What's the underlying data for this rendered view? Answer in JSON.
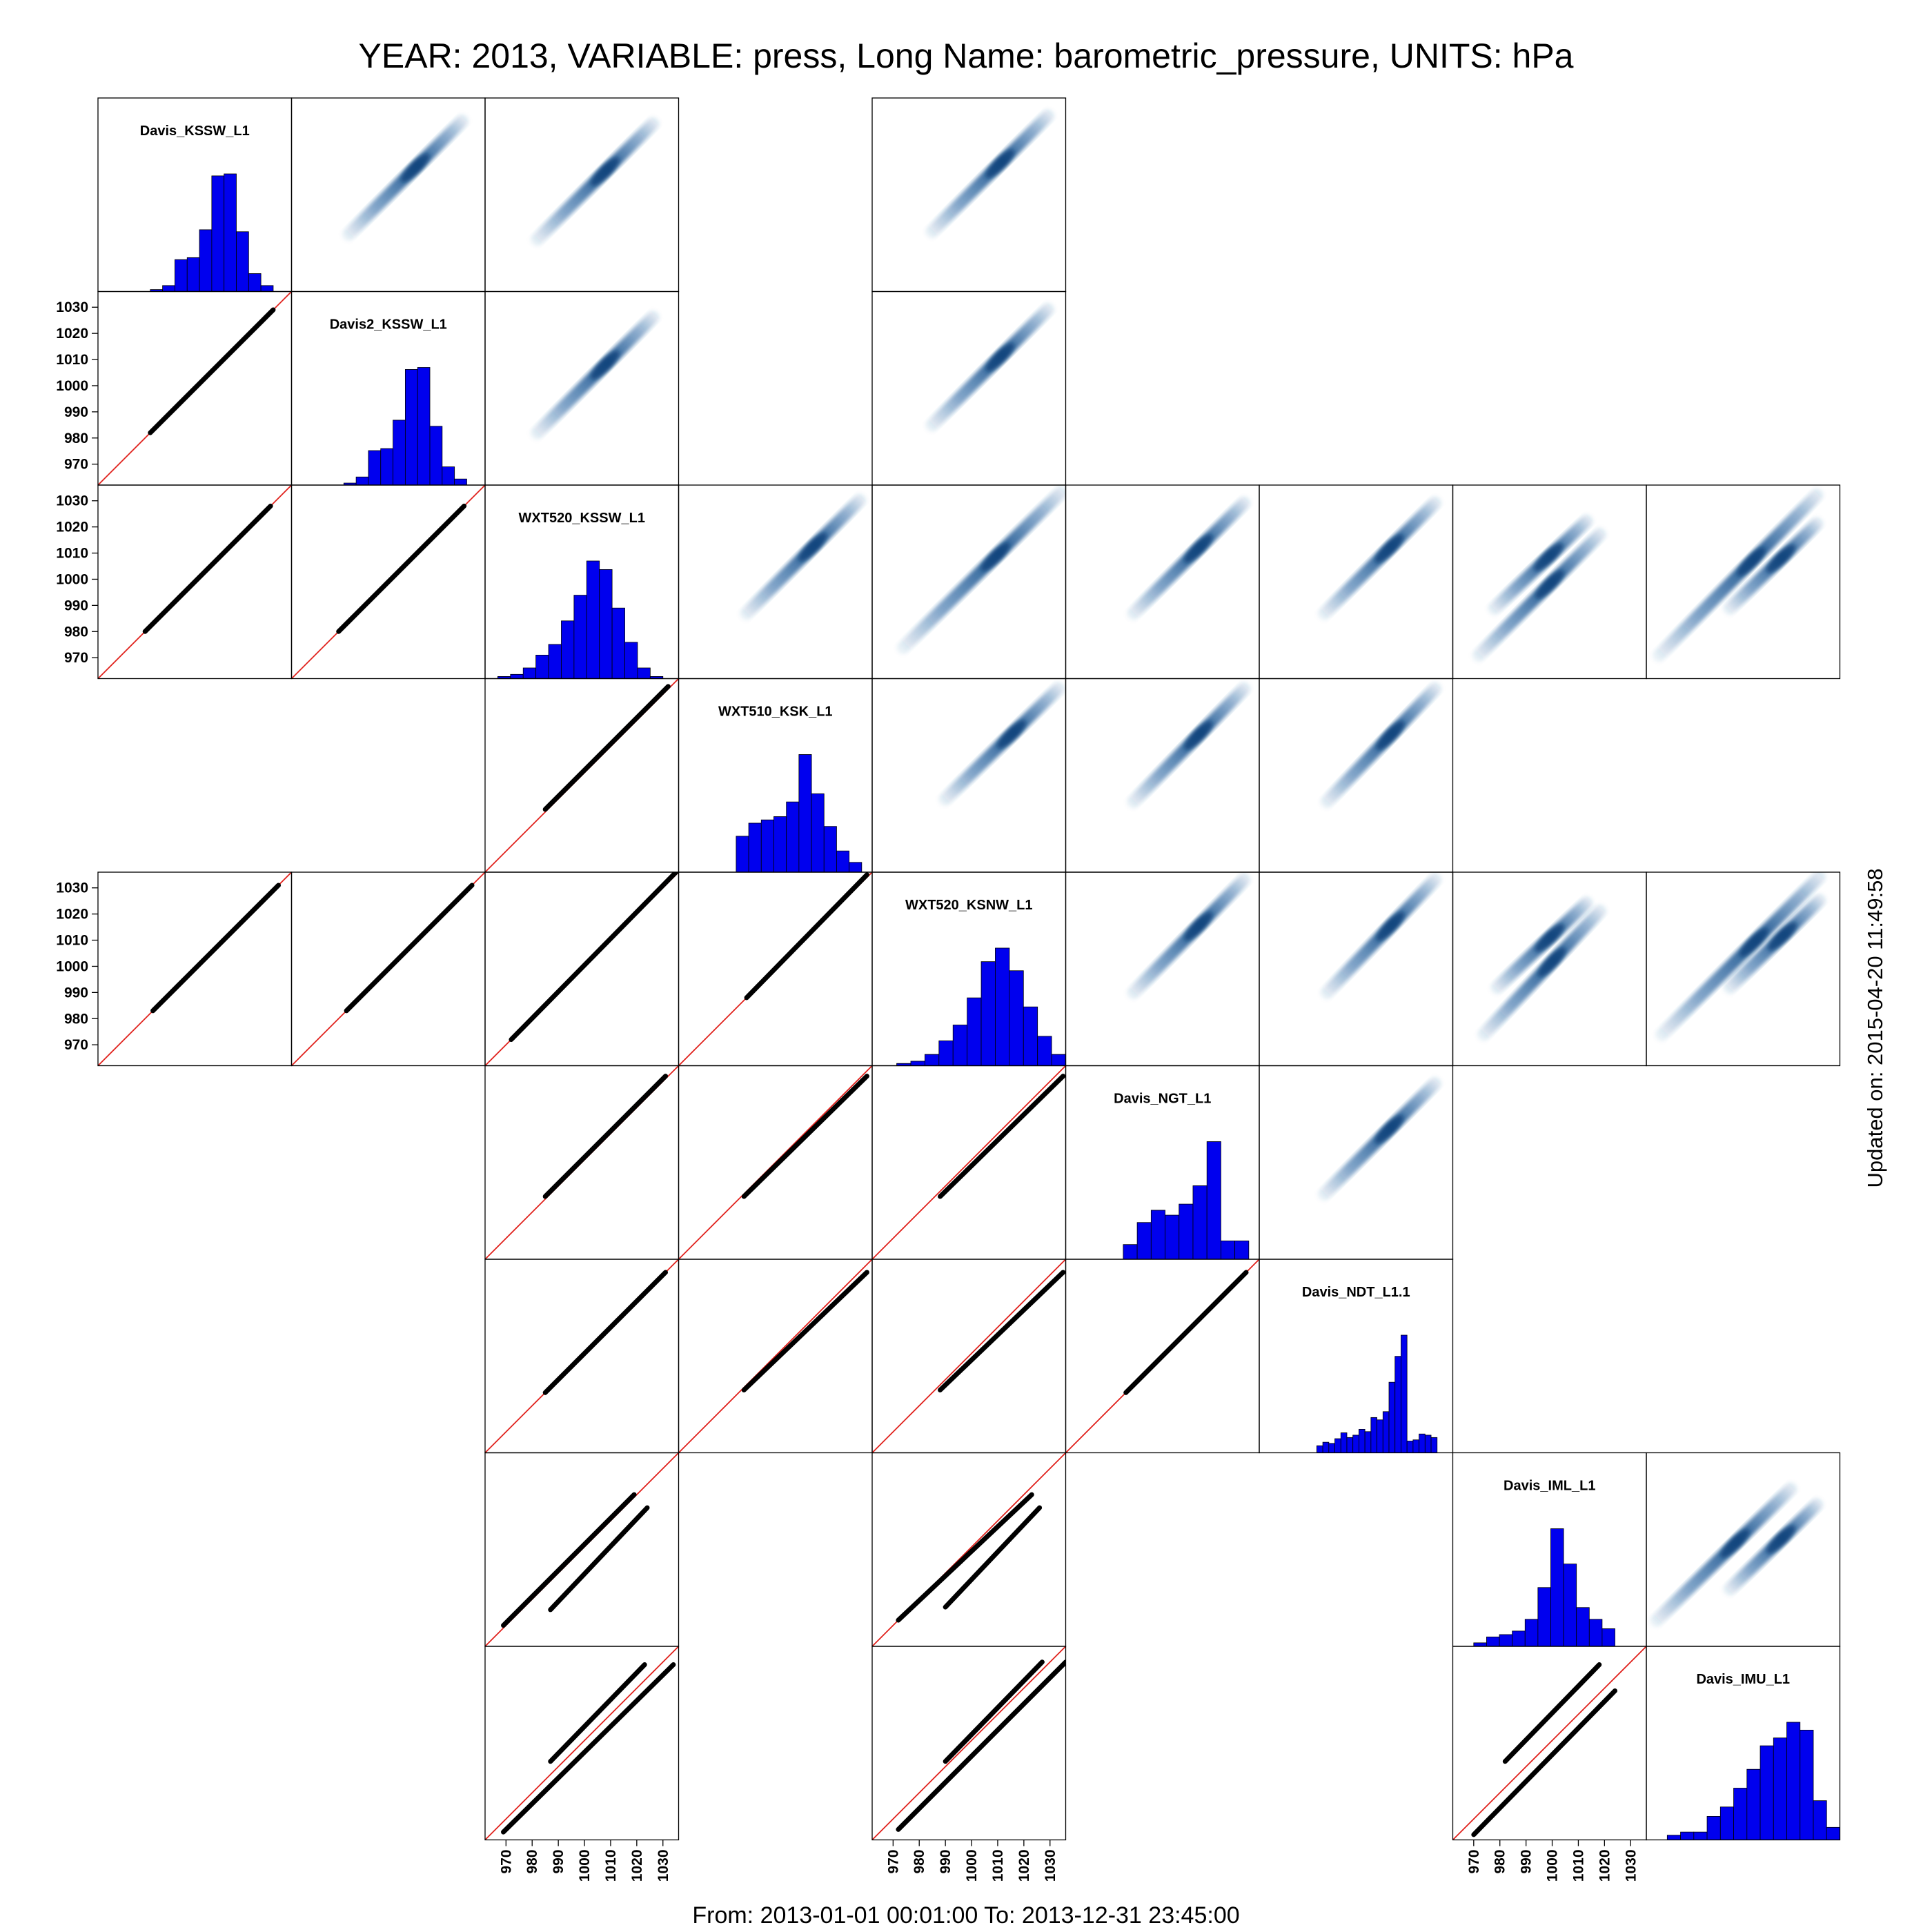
{
  "title": "YEAR: 2013, VARIABLE: press, Long Name: barometric_pressure, UNITS: hPa",
  "footer": "From: 2013-01-01 00:01:00 To: 2013-12-31 23:45:00",
  "updated": "Updated on: 2015-04-20 11:49:58",
  "colors": {
    "hist": "#0000ee",
    "points": "#000000",
    "identity_line": "#e0201b",
    "density": "#1f5f9f",
    "panel_border": "#000000"
  },
  "chart_data": {
    "type": "scatter",
    "axis_range": [
      962,
      1036
    ],
    "ticks": [
      970,
      980,
      990,
      1000,
      1010,
      1020,
      1030
    ],
    "tick_labels": [
      "970",
      "980",
      "990",
      "1000",
      "1010",
      "1020",
      "1030"
    ],
    "stations": [
      "Davis_KSSW_L1",
      "Davis2_KSSW_L1",
      "WXT520_KSSW_L1",
      "WXT510_KSK_L1",
      "WXT520_KSNW_L1",
      "Davis_NGT_L1",
      "Davis_NDT_L1.1",
      "Davis_IML_L1",
      "Davis_IMU_L1"
    ],
    "left_tick_rows": [
      1,
      2,
      4
    ],
    "bottom_tick_cols": [
      2,
      4,
      7
    ],
    "histograms": [
      {
        "station": "Davis_KSSW_L1",
        "range": [
          982,
          1029
        ],
        "counts": [
          1,
          3,
          16,
          17,
          31,
          58,
          59,
          30,
          9,
          3
        ]
      },
      {
        "station": "Davis2_KSSW_L1",
        "range": [
          982,
          1029
        ],
        "counts": [
          1,
          4,
          17,
          18,
          32,
          57,
          58,
          29,
          9,
          3
        ]
      },
      {
        "station": "WXT520_KSSW_L1",
        "range": [
          962,
          1030
        ],
        "counts": [
          0,
          1,
          2,
          5,
          11,
          16,
          27,
          39,
          55,
          51,
          33,
          17,
          5,
          1
        ]
      },
      {
        "station": "WXT510_KSK_L1",
        "range": [
          984,
          1032
        ],
        "counts": [
          22,
          30,
          32,
          34,
          43,
          72,
          48,
          28,
          13,
          6
        ]
      },
      {
        "station": "WXT520_KSNW_L1",
        "range": [
          966,
          1036
        ],
        "counts": [
          0,
          1,
          2,
          5,
          11,
          18,
          30,
          46,
          52,
          42,
          26,
          13,
          5
        ]
      },
      {
        "station": "Davis_NGT_L1",
        "range": [
          984,
          1032
        ],
        "counts": [
          12,
          30,
          40,
          36,
          45,
          60,
          96,
          15,
          15
        ]
      },
      {
        "station": "Davis_NDT_L1.1",
        "range": [
          984,
          1030
        ],
        "counts": [
          6,
          9,
          8,
          12,
          17,
          13,
          15,
          20,
          18,
          30,
          28,
          35,
          60,
          82,
          100,
          10,
          11,
          16,
          15,
          13
        ]
      },
      {
        "station": "Davis_IML_L1",
        "range": [
          970,
          1024
        ],
        "counts": [
          3,
          8,
          10,
          13,
          23,
          50,
          100,
          70,
          33,
          23,
          15
        ]
      },
      {
        "station": "Davis_IMU_L1",
        "range": [
          970,
          1036
        ],
        "counts": [
          3,
          5,
          5,
          15,
          21,
          33,
          45,
          60,
          65,
          75,
          70,
          25,
          8
        ]
      }
    ],
    "pairs": [
      {
        "row": 1,
        "col": 0,
        "segments": [
          [
            982,
            982,
            1029,
            1029
          ]
        ]
      },
      {
        "row": 2,
        "col": 0,
        "segments": [
          [
            980,
            980,
            1028,
            1028
          ]
        ]
      },
      {
        "row": 2,
        "col": 1,
        "segments": [
          [
            980,
            980,
            1028,
            1028
          ]
        ]
      },
      {
        "row": 4,
        "col": 0,
        "segments": [
          [
            983,
            983,
            1031,
            1031
          ]
        ]
      },
      {
        "row": 4,
        "col": 1,
        "segments": [
          [
            983,
            983,
            1031,
            1031
          ]
        ]
      },
      {
        "row": 3,
        "col": 2,
        "segments": [
          [
            985,
            986,
            1032,
            1033
          ]
        ]
      },
      {
        "row": 4,
        "col": 2,
        "segments": [
          [
            972,
            972,
            1035,
            1036
          ]
        ]
      },
      {
        "row": 4,
        "col": 3,
        "segments": [
          [
            988,
            988,
            1034,
            1035
          ]
        ]
      },
      {
        "row": 5,
        "col": 2,
        "segments": [
          [
            985,
            986,
            1031,
            1032
          ]
        ]
      },
      {
        "row": 5,
        "col": 3,
        "segments": [
          [
            987,
            986,
            1034,
            1032
          ]
        ]
      },
      {
        "row": 5,
        "col": 4,
        "segments": [
          [
            988,
            986,
            1035,
            1032
          ]
        ]
      },
      {
        "row": 6,
        "col": 2,
        "segments": [
          [
            985,
            985,
            1031,
            1031
          ]
        ]
      },
      {
        "row": 6,
        "col": 3,
        "segments": [
          [
            987,
            986,
            1034,
            1031
          ]
        ]
      },
      {
        "row": 6,
        "col": 4,
        "segments": [
          [
            988,
            986,
            1035,
            1031
          ]
        ]
      },
      {
        "row": 6,
        "col": 5,
        "segments": [
          [
            985,
            985,
            1031,
            1031
          ]
        ]
      },
      {
        "row": 7,
        "col": 2,
        "segments": [
          [
            969,
            970,
            1019,
            1020
          ],
          [
            987,
            976,
            1024,
            1015
          ]
        ]
      },
      {
        "row": 7,
        "col": 4,
        "segments": [
          [
            972,
            972,
            1023,
            1020
          ],
          [
            990,
            977,
            1026,
            1015
          ]
        ]
      },
      {
        "row": 8,
        "col": 2,
        "segments": [
          [
            969,
            965,
            1034,
            1029
          ],
          [
            987,
            992,
            1023,
            1029
          ]
        ]
      },
      {
        "row": 8,
        "col": 4,
        "segments": [
          [
            972,
            966,
            1036,
            1030
          ],
          [
            990,
            992,
            1027,
            1030
          ]
        ]
      },
      {
        "row": 8,
        "col": 7,
        "segments": [
          [
            970,
            964,
            1024,
            1019
          ],
          [
            982,
            992,
            1018,
            1029
          ]
        ]
      }
    ],
    "density_panels": [
      {
        "row": 0,
        "col": 1
      },
      {
        "row": 0,
        "col": 2
      },
      {
        "row": 0,
        "col": 4
      },
      {
        "row": 1,
        "col": 2
      },
      {
        "row": 1,
        "col": 4
      },
      {
        "row": 2,
        "col": 3
      },
      {
        "row": 2,
        "col": 4
      },
      {
        "row": 2,
        "col": 5
      },
      {
        "row": 2,
        "col": 6
      },
      {
        "row": 2,
        "col": 7
      },
      {
        "row": 2,
        "col": 8
      },
      {
        "row": 3,
        "col": 4
      },
      {
        "row": 3,
        "col": 5
      },
      {
        "row": 3,
        "col": 6
      },
      {
        "row": 4,
        "col": 5
      },
      {
        "row": 4,
        "col": 6
      },
      {
        "row": 4,
        "col": 7
      },
      {
        "row": 4,
        "col": 8
      },
      {
        "row": 5,
        "col": 6
      },
      {
        "row": 7,
        "col": 8
      }
    ]
  }
}
